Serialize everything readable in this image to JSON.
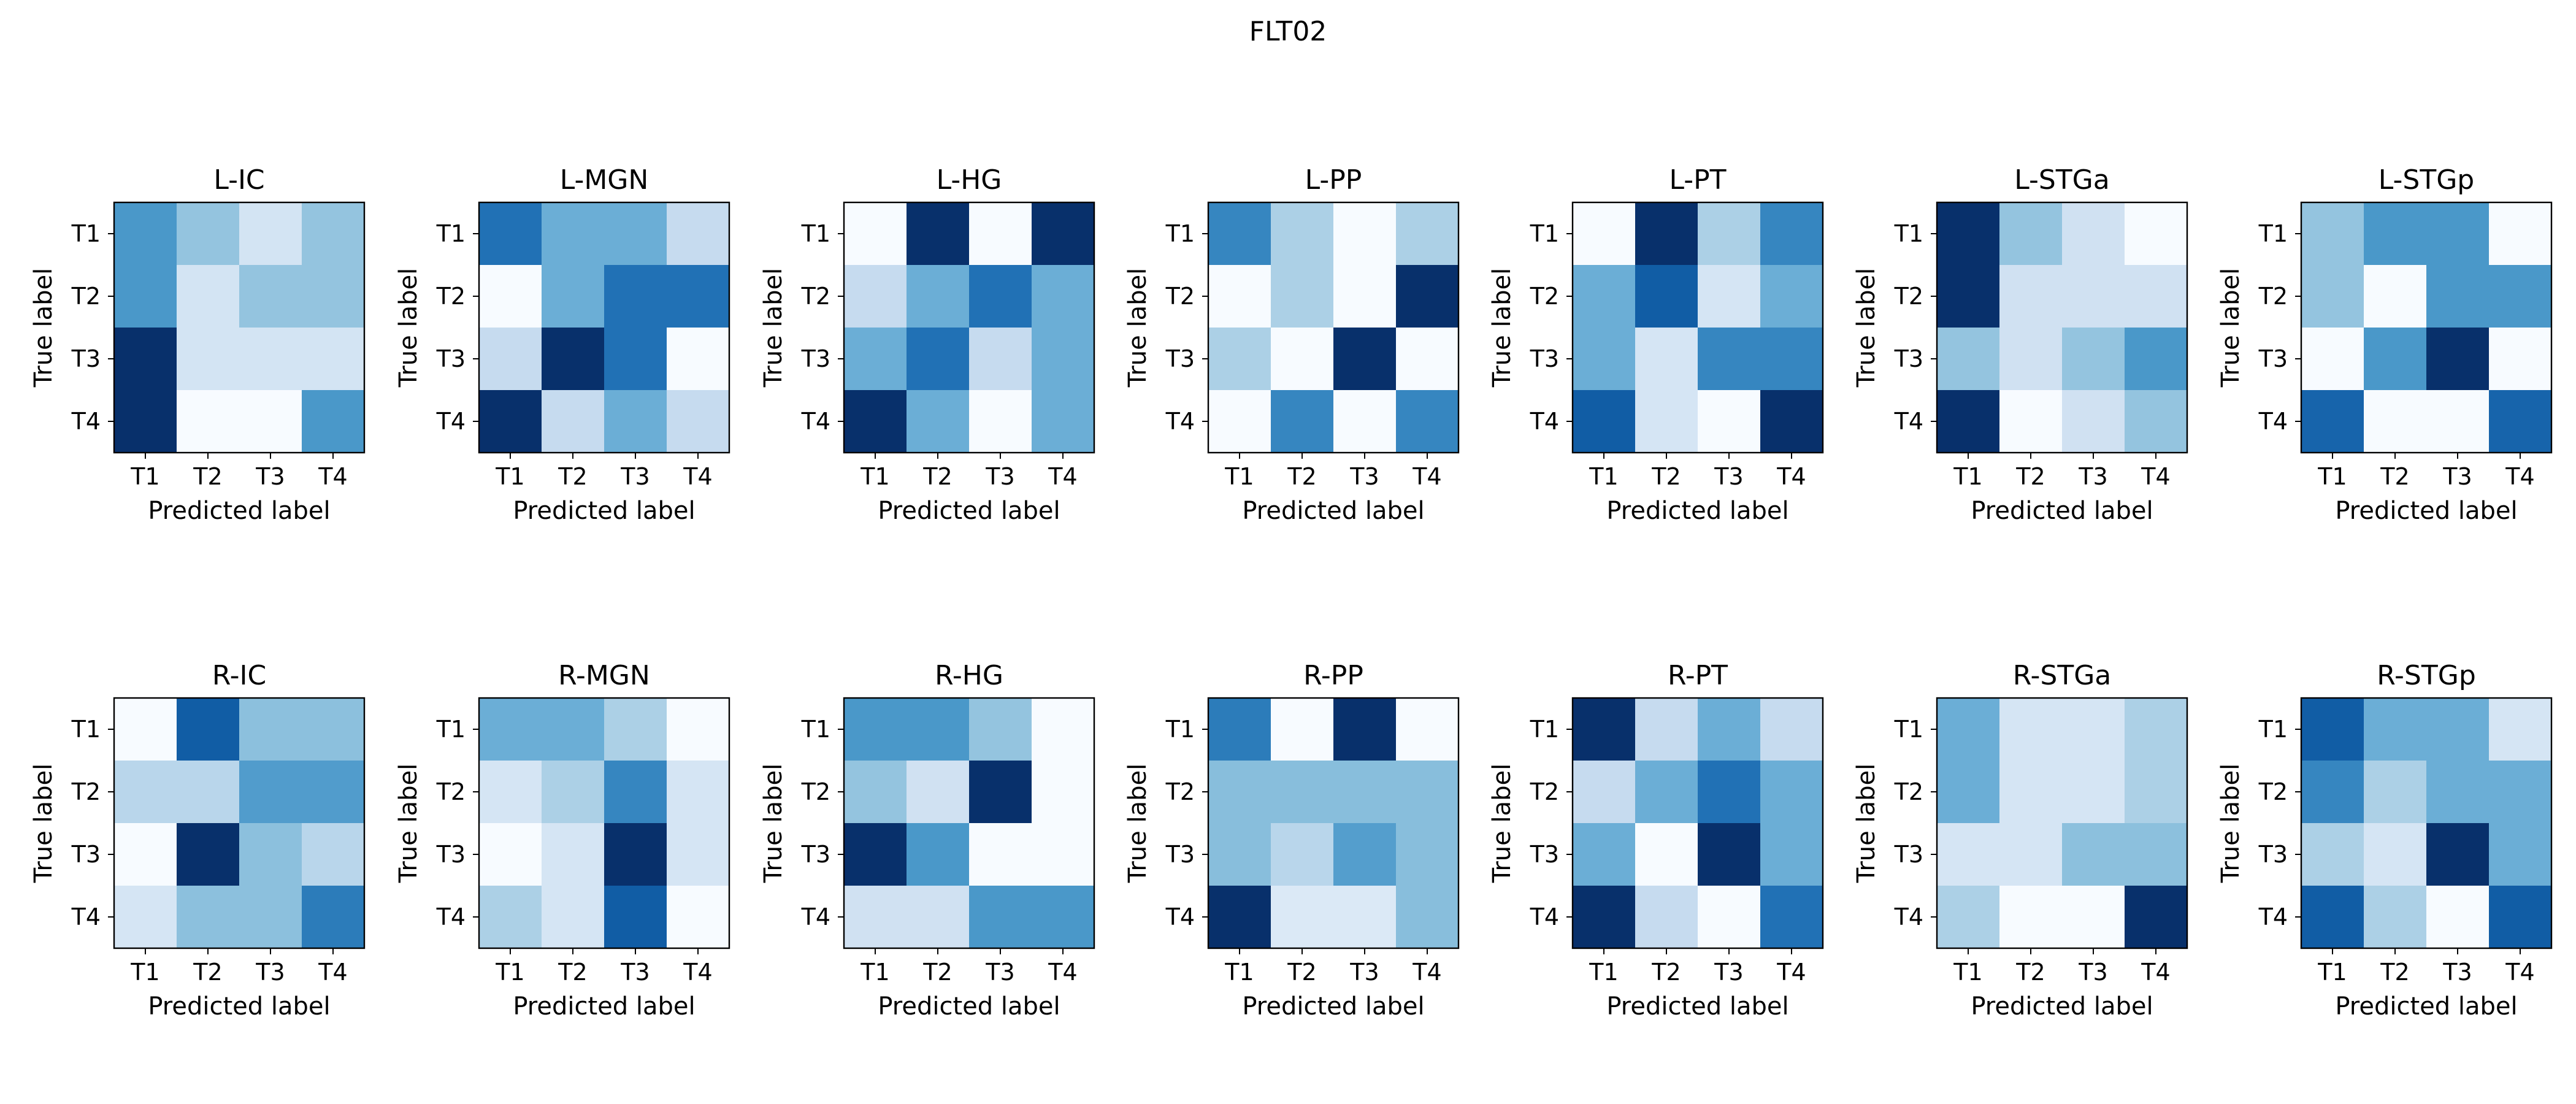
{
  "chart_data": {
    "type": "heatmap",
    "title": "FLT02",
    "xlabel": "Predicted label",
    "ylabel": "True label",
    "labels": [
      "T1",
      "T2",
      "T3",
      "T4"
    ],
    "colormap": "Blues",
    "colormap_stops": [
      "#f7fbff",
      "#deebf7",
      "#c6dbef",
      "#9ecae1",
      "#6baed6",
      "#4292c6",
      "#2171b5",
      "#08519c",
      "#08306b"
    ],
    "value_range": [
      0,
      1
    ],
    "panels": [
      {
        "name": "L-IC",
        "matrix": [
          [
            0.6,
            0.4,
            0.18,
            0.4
          ],
          [
            0.6,
            0.18,
            0.4,
            0.4
          ],
          [
            1.0,
            0.18,
            0.18,
            0.18
          ],
          [
            1.0,
            0.0,
            0.0,
            0.6
          ]
        ]
      },
      {
        "name": "L-MGN",
        "matrix": [
          [
            0.75,
            0.5,
            0.5,
            0.25
          ],
          [
            0.0,
            0.5,
            0.75,
            0.75
          ],
          [
            0.25,
            1.0,
            0.75,
            0.0
          ],
          [
            1.0,
            0.25,
            0.5,
            0.25
          ]
        ]
      },
      {
        "name": "L-HG",
        "matrix": [
          [
            0.0,
            1.0,
            0.0,
            1.0
          ],
          [
            0.25,
            0.5,
            0.75,
            0.5
          ],
          [
            0.5,
            0.75,
            0.25,
            0.5
          ],
          [
            1.0,
            0.5,
            0.0,
            0.5
          ]
        ]
      },
      {
        "name": "L-PP",
        "matrix": [
          [
            0.67,
            0.33,
            0.0,
            0.33
          ],
          [
            0.0,
            0.33,
            0.0,
            1.0
          ],
          [
            0.33,
            0.0,
            1.0,
            0.0
          ],
          [
            0.0,
            0.67,
            0.0,
            0.67
          ]
        ]
      },
      {
        "name": "L-PT",
        "matrix": [
          [
            0.0,
            1.0,
            0.33,
            0.67
          ],
          [
            0.5,
            0.83,
            0.17,
            0.5
          ],
          [
            0.5,
            0.17,
            0.67,
            0.67
          ],
          [
            0.83,
            0.17,
            0.0,
            1.0
          ]
        ]
      },
      {
        "name": "L-STGa",
        "matrix": [
          [
            1.0,
            0.4,
            0.2,
            0.0
          ],
          [
            1.0,
            0.2,
            0.2,
            0.2
          ],
          [
            0.4,
            0.2,
            0.4,
            0.6
          ],
          [
            1.0,
            0.0,
            0.2,
            0.4
          ]
        ]
      },
      {
        "name": "L-STGp",
        "matrix": [
          [
            0.4,
            0.6,
            0.6,
            0.0
          ],
          [
            0.4,
            0.0,
            0.6,
            0.6
          ],
          [
            0.0,
            0.6,
            1.0,
            0.0
          ],
          [
            0.8,
            0.0,
            0.0,
            0.8
          ]
        ]
      },
      {
        "name": "R-IC",
        "matrix": [
          [
            0.0,
            0.83,
            0.42,
            0.42
          ],
          [
            0.29,
            0.29,
            0.58,
            0.58
          ],
          [
            0.0,
            1.0,
            0.42,
            0.29
          ],
          [
            0.17,
            0.42,
            0.42,
            0.71
          ]
        ]
      },
      {
        "name": "R-MGN",
        "matrix": [
          [
            0.5,
            0.5,
            0.33,
            0.0
          ],
          [
            0.17,
            0.33,
            0.67,
            0.17
          ],
          [
            0.0,
            0.17,
            1.0,
            0.17
          ],
          [
            0.33,
            0.17,
            0.83,
            0.0
          ]
        ]
      },
      {
        "name": "R-HG",
        "matrix": [
          [
            0.6,
            0.6,
            0.4,
            0.0
          ],
          [
            0.4,
            0.2,
            1.0,
            0.0
          ],
          [
            1.0,
            0.6,
            0.0,
            0.0
          ],
          [
            0.2,
            0.2,
            0.6,
            0.6
          ]
        ]
      },
      {
        "name": "R-PP",
        "matrix": [
          [
            0.71,
            0.0,
            1.0,
            0.0
          ],
          [
            0.43,
            0.43,
            0.43,
            0.43
          ],
          [
            0.43,
            0.29,
            0.57,
            0.43
          ],
          [
            1.0,
            0.14,
            0.14,
            0.43
          ]
        ]
      },
      {
        "name": "R-PT",
        "matrix": [
          [
            1.0,
            0.25,
            0.5,
            0.25
          ],
          [
            0.25,
            0.5,
            0.75,
            0.5
          ],
          [
            0.5,
            0.0,
            1.0,
            0.5
          ],
          [
            1.0,
            0.25,
            0.0,
            0.75
          ]
        ]
      },
      {
        "name": "R-STGa",
        "matrix": [
          [
            0.5,
            0.17,
            0.17,
            0.33
          ],
          [
            0.5,
            0.17,
            0.17,
            0.33
          ],
          [
            0.17,
            0.17,
            0.42,
            0.42
          ],
          [
            0.33,
            0.0,
            0.0,
            1.0
          ]
        ]
      },
      {
        "name": "R-STGp",
        "matrix": [
          [
            0.83,
            0.5,
            0.5,
            0.17
          ],
          [
            0.67,
            0.33,
            0.5,
            0.5
          ],
          [
            0.33,
            0.17,
            1.0,
            0.5
          ],
          [
            0.83,
            0.33,
            0.0,
            0.83
          ]
        ]
      }
    ]
  }
}
